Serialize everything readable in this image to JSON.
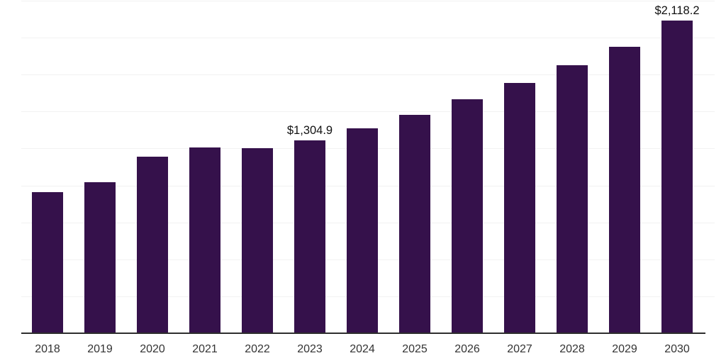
{
  "chart_data": {
    "type": "bar",
    "title": "",
    "xlabel": "",
    "ylabel": "",
    "categories": [
      "2018",
      "2019",
      "2020",
      "2021",
      "2022",
      "2023",
      "2024",
      "2025",
      "2026",
      "2027",
      "2028",
      "2029",
      "2030"
    ],
    "values": [
      955,
      1024,
      1195,
      1257,
      1250,
      1304.9,
      1387,
      1480,
      1581,
      1694,
      1814,
      1940,
      2118.2
    ],
    "data_labels": [
      {
        "category": "2023",
        "text": "$1,304.9"
      },
      {
        "category": "2030",
        "text": "$2,118.2"
      }
    ],
    "ylim": [
      0,
      2250
    ],
    "gridline_interval": 250,
    "grid_on": true,
    "legend": "none",
    "colors": {
      "bar": "#35114B",
      "axis_line": "#2E2E2E",
      "gridline": "#F2F2F2",
      "tick_label": "#333333",
      "data_label": "#111111",
      "background": "#FFFFFF"
    }
  }
}
